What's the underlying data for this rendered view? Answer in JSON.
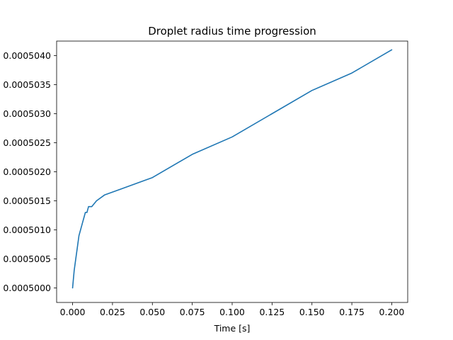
{
  "chart_data": {
    "type": "line",
    "title": "Droplet radius time progression",
    "xlabel": "Time [s]",
    "ylabel": "",
    "xlim": [
      -0.01,
      0.21
    ],
    "ylim": [
      0.00049975,
      0.00050425
    ],
    "x_ticks": [
      0.0,
      0.025,
      0.05,
      0.075,
      0.1,
      0.125,
      0.15,
      0.175,
      0.2
    ],
    "x_tick_labels": [
      "0.000",
      "0.025",
      "0.050",
      "0.075",
      "0.100",
      "0.125",
      "0.150",
      "0.175",
      "0.200"
    ],
    "y_ticks": [
      0.0005,
      0.0005005,
      0.000501,
      0.0005015,
      0.000502,
      0.0005025,
      0.000503,
      0.0005035,
      0.000504
    ],
    "y_tick_labels": [
      "0.0005000",
      "0.0005005",
      "0.0005010",
      "0.0005015",
      "0.0005020",
      "0.0005025",
      "0.0005030",
      "0.0005035",
      "0.0005040"
    ],
    "grid": false,
    "series": [
      {
        "color": "#1f77b4",
        "x": [
          0.0,
          0.001,
          0.002,
          0.003,
          0.004,
          0.005,
          0.006,
          0.007,
          0.008,
          0.009,
          0.01,
          0.011,
          0.012,
          0.015,
          0.02,
          0.03,
          0.05,
          0.075,
          0.1,
          0.125,
          0.15,
          0.175,
          0.2
        ],
        "y": [
          0.0005,
          0.0005003,
          0.0005005,
          0.0005007,
          0.0005009,
          0.000501,
          0.0005011,
          0.0005012,
          0.0005013,
          0.0005013,
          0.0005014,
          0.0005014,
          0.0005014,
          0.0005015,
          0.0005016,
          0.0005017,
          0.0005019,
          0.0005023,
          0.0005026,
          0.000503,
          0.0005034,
          0.0005037,
          0.0005041
        ]
      }
    ]
  }
}
